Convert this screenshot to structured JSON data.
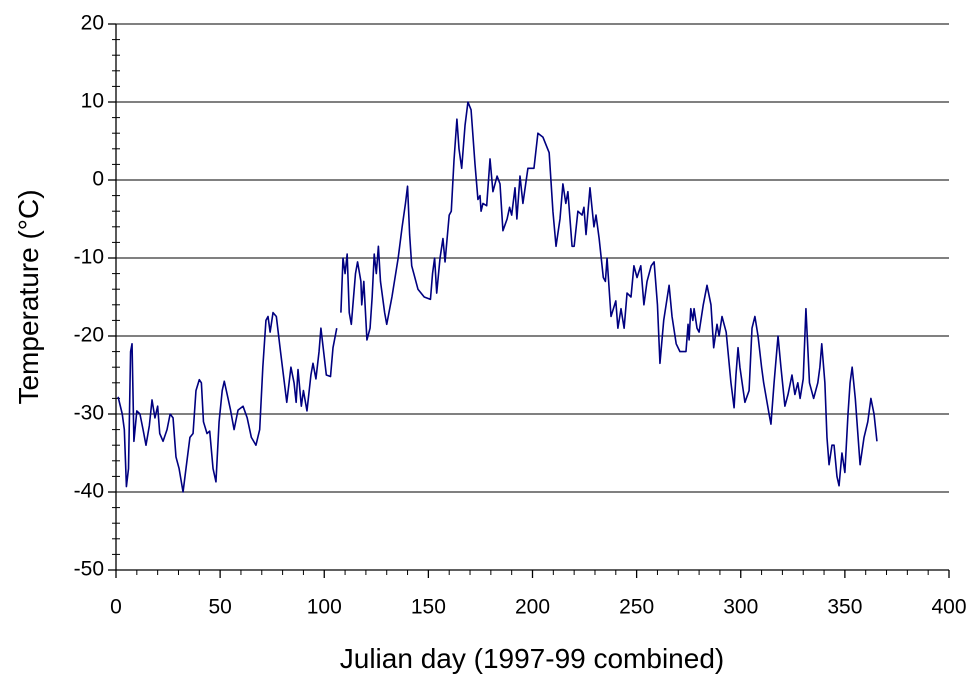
{
  "chart_data": {
    "type": "line",
    "xlabel": "Julian day (1997-99 combined)",
    "ylabel": "Temperature (°C)",
    "xlim": [
      0,
      400
    ],
    "xticks": [
      0,
      50,
      100,
      150,
      200,
      250,
      300,
      350,
      400
    ],
    "xminorticks": [
      10,
      20,
      30,
      40,
      60,
      70,
      80,
      90,
      110,
      120,
      130,
      140,
      160,
      170,
      180,
      190,
      210,
      220,
      230,
      240,
      260,
      270,
      280,
      290,
      310,
      320,
      330,
      340,
      360,
      370,
      380,
      390
    ],
    "ylim": [
      -50,
      20
    ],
    "yticks": [
      -50,
      -40,
      -30,
      -20,
      -10,
      0,
      10,
      20
    ],
    "yminorticks": [
      -48,
      -46,
      -44,
      -42,
      -38,
      -36,
      -34,
      -32,
      -28,
      -26,
      -24,
      -22,
      -18,
      -16,
      -14,
      -12,
      -8,
      -6,
      -4,
      -2,
      2,
      4,
      6,
      8,
      12,
      14,
      16,
      18
    ],
    "grid": true,
    "series": [
      {
        "name": "Temperature",
        "color": "#000080",
        "x": [
          1,
          3,
          4,
          5,
          6,
          7,
          7.7,
          8.6,
          10,
          11.5,
          13,
          14.4,
          16,
          17.3,
          18.7,
          20,
          21,
          22.6,
          24.5,
          26,
          27.4,
          28.8,
          30.3,
          32.2,
          33.6,
          35.5,
          37,
          38.4,
          40,
          41,
          42,
          43.7,
          45,
          46.6,
          48,
          49.5,
          51,
          52,
          53.8,
          55,
          56.7,
          58.6,
          61,
          63,
          65,
          67.2,
          69,
          70.5,
          72,
          73,
          74,
          75.4,
          77,
          79,
          82,
          84,
          85.5,
          86.5,
          87.4,
          89,
          90,
          91.7,
          93.6,
          94.6,
          96,
          97.5,
          98.4,
          101,
          103,
          104.2,
          106,
          107,
          108,
          109,
          110,
          111,
          112,
          113,
          115,
          116,
          117.6,
          118,
          119,
          120.5,
          122,
          123,
          124,
          125,
          126,
          127,
          129,
          130,
          132.5,
          135.5,
          137.4,
          139,
          140,
          141,
          142,
          143,
          145,
          148,
          151,
          152,
          153,
          154,
          155.6,
          157,
          158,
          160,
          161,
          162.3,
          163.7,
          164.7,
          166,
          167.6,
          169,
          170.5,
          172.4,
          173.8,
          174.8,
          175.3,
          176.2,
          178,
          179.6,
          181,
          183,
          184.4,
          185.8,
          187.8,
          189,
          190,
          191.6,
          192.5,
          194,
          195.4,
          197.8,
          200.7,
          202.6,
          205,
          208,
          209.8,
          211.3,
          213.2,
          214.6,
          216,
          217,
          219,
          220,
          221.8,
          223.8,
          224.7,
          225.7,
          227.6,
          229.5,
          230.5,
          232,
          234,
          235,
          235.8,
          237.7,
          240,
          241,
          242.5,
          244,
          245.4,
          247.3,
          248.7,
          250.2,
          252,
          253.5,
          255,
          257,
          258.4,
          260,
          261.2,
          263,
          265.6,
          267,
          269,
          270.8,
          273.7,
          274.7,
          275.2,
          276,
          277,
          277.6,
          279,
          280,
          282,
          283.8,
          285.7,
          287,
          288.6,
          289.6,
          291,
          293,
          295.3,
          296.8,
          297.7,
          298.7,
          299.6,
          302,
          304,
          305.4,
          306.8,
          308.3,
          310,
          311,
          313.6,
          314.5,
          316,
          317.9,
          319.3,
          321.2,
          322.7,
          324.6,
          326,
          327.4,
          328.5,
          330,
          331.3,
          333,
          335,
          337,
          338,
          338.9,
          340.4,
          341.4,
          342.4,
          343.8,
          344.8,
          346.2,
          347.2,
          348.6,
          350,
          351.5,
          352.5,
          353.5,
          355,
          357.3,
          359.2,
          361,
          362.5,
          364,
          365.4
        ],
        "values": [
          -27.8,
          -30,
          -32,
          -39.3,
          -37,
          -22,
          -21,
          -33.5,
          -29.6,
          -30,
          -32,
          -34,
          -31.5,
          -28.2,
          -30.5,
          -29,
          -32.5,
          -33.5,
          -32,
          -30,
          -30.5,
          -35.5,
          -37,
          -40,
          -37,
          -33,
          -32.5,
          -27,
          -25.6,
          -26,
          -31,
          -32.5,
          -32.2,
          -37,
          -38.7,
          -31,
          -27,
          -25.8,
          -28,
          -29.5,
          -32,
          -29.5,
          -29,
          -30.5,
          -33,
          -34,
          -32,
          -24,
          -18,
          -17.5,
          -19.5,
          -17,
          -17.5,
          -22,
          -28.5,
          -24,
          -26,
          -28.5,
          -24.3,
          -29,
          -27,
          -29.6,
          -25,
          -23.5,
          -25.5,
          -22,
          -19,
          -25,
          -25.2,
          -21.5,
          -19,
          null,
          -17,
          -10,
          -12,
          -9.5,
          -17,
          -18.5,
          -12,
          -10.5,
          -13,
          -16,
          -13,
          -20.5,
          -19,
          -15,
          -9.5,
          -12,
          -8.5,
          -13,
          -17,
          -18.5,
          -15,
          -10,
          -6,
          -3,
          -0.8,
          -7,
          -11,
          -12,
          -14,
          -15,
          -15.3,
          -12,
          -10,
          -14.5,
          -10,
          -7.5,
          -10.5,
          -4.5,
          -4,
          2.5,
          7.8,
          4,
          1.5,
          7,
          10,
          9,
          2,
          -2.5,
          -2,
          -4,
          -3,
          -3.3,
          2.7,
          -1.5,
          0.5,
          -0.5,
          -6.5,
          -5,
          -3.5,
          -4.5,
          -1,
          -5,
          0.5,
          -3,
          1.5,
          1.5,
          6,
          5.5,
          3.5,
          -4,
          -8.5,
          -5,
          -0.5,
          -3,
          -1.5,
          -8.5,
          -8.5,
          -4,
          -4.5,
          -3.5,
          -7,
          -1,
          -6,
          -4.5,
          -7.5,
          -12.5,
          -13,
          -10,
          -17.5,
          -15.5,
          -19,
          -16.5,
          -19,
          -14.5,
          -15,
          -11,
          -12.5,
          -11,
          -16,
          -13,
          -11,
          -10.5,
          -16,
          -23.5,
          -18,
          -13.5,
          -17.5,
          -21,
          -22,
          -22,
          -18.5,
          -20.5,
          -16.5,
          -18,
          -16.5,
          -19,
          -19.5,
          -16,
          -13.5,
          -16,
          -21.5,
          -18.5,
          -20,
          -17.5,
          -19.5,
          -26,
          -29.2,
          -25,
          -21.5,
          -24,
          -28.5,
          -27,
          -19,
          -17.5,
          -20,
          -24,
          -26,
          -30,
          -31.3,
          -26,
          -20,
          -24,
          -29,
          -27.5,
          -25,
          -27.5,
          -26,
          -28,
          -25.5,
          -16.5,
          -26,
          -28,
          -26,
          -24,
          -21,
          -26,
          -33,
          -36.5,
          -34,
          -34,
          -38,
          -39.2,
          -35,
          -37.5,
          -30,
          -26,
          -24,
          -28,
          -36.5,
          -33,
          -31,
          -28,
          -30,
          -33.5
        ]
      }
    ]
  }
}
